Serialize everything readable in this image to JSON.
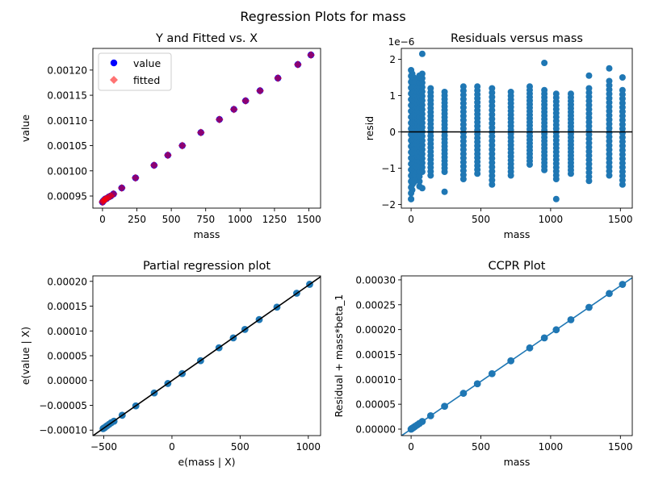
{
  "suptitle": "Regression Plots for mass",
  "colors": {
    "marker": "#1f77b4",
    "fitted": "#ff0000",
    "line": "#000000",
    "ccpr_line": "#1f77b4"
  },
  "chart_data": [
    {
      "type": "scatter",
      "title": "Y and Fitted vs. X",
      "xlabel": "mass",
      "ylabel": "value",
      "xlim": [
        -70,
        1585
      ],
      "ylim": [
        0.000926,
        0.001243
      ],
      "xticks": [
        0,
        250,
        500,
        750,
        1000,
        1250,
        1500
      ],
      "xticklabels": [
        "0",
        "250",
        "500",
        "750",
        "1000",
        "1250",
        "1500"
      ],
      "yticks": [
        0.00095,
        0.001,
        0.00105,
        0.0011,
        0.00115,
        0.0012
      ],
      "yticklabels": [
        "0.00095",
        "0.00100",
        "0.00105",
        "0.00110",
        "0.00115",
        "0.00120"
      ],
      "legend": {
        "position": "top-left",
        "entries": [
          "value",
          "fitted"
        ]
      },
      "series": [
        {
          "name": "value",
          "x": [
            0,
            5,
            12,
            20,
            30,
            45,
            60,
            80,
            140,
            240,
            375,
            475,
            580,
            715,
            850,
            955,
            1040,
            1145,
            1275,
            1420,
            1515
          ],
          "y": [
            0.000938,
            0.00094,
            0.000942,
            0.000944,
            0.000945,
            0.000948,
            0.00095,
            0.000954,
            0.000966,
            0.000986,
            0.001011,
            0.001031,
            0.00105,
            0.001076,
            0.001102,
            0.001122,
            0.001139,
            0.001159,
            0.001184,
            0.001211,
            0.00123
          ]
        },
        {
          "name": "fitted",
          "x": [
            0,
            5,
            12,
            20,
            30,
            45,
            60,
            80,
            140,
            240,
            375,
            475,
            580,
            715,
            850,
            955,
            1040,
            1145,
            1275,
            1420,
            1515
          ],
          "y": [
            0.000938,
            0.00094,
            0.000942,
            0.000944,
            0.000945,
            0.000948,
            0.00095,
            0.000954,
            0.000966,
            0.000986,
            0.001011,
            0.001031,
            0.00105,
            0.001076,
            0.001102,
            0.001122,
            0.001139,
            0.001159,
            0.001184,
            0.001211,
            0.00123
          ]
        }
      ]
    },
    {
      "type": "scatter",
      "title": "Residuals versus mass",
      "xlabel": "mass",
      "ylabel": "resid",
      "offset_label": "1e−6",
      "xlim": [
        -70,
        1585
      ],
      "ylim": [
        -2.1,
        2.3
      ],
      "xticks": [
        0,
        500,
        1000,
        1500
      ],
      "xticklabels": [
        "0",
        "500",
        "1000",
        "1500"
      ],
      "yticks": [
        -2,
        -1,
        0,
        1,
        2
      ],
      "yticklabels": [
        "−2",
        "−1",
        "0",
        "1",
        "2"
      ],
      "hline": 0,
      "columns": [
        {
          "x": 0,
          "min": -1.85,
          "max": 1.7
        },
        {
          "x": 8,
          "min": -1.6,
          "max": 1.6
        },
        {
          "x": 18,
          "min": -1.4,
          "max": 1.5
        },
        {
          "x": 30,
          "min": -1.3,
          "max": 1.4
        },
        {
          "x": 45,
          "min": -1.1,
          "max": 1.2
        },
        {
          "x": 60,
          "min": -1.5,
          "max": 1.5
        },
        {
          "x": 80,
          "min": -1.1,
          "max": 1.6
        },
        {
          "x": 140,
          "min": -1.2,
          "max": 1.2
        },
        {
          "x": 240,
          "min": -1.1,
          "max": 1.1
        },
        {
          "x": 375,
          "min": -1.3,
          "max": 1.25
        },
        {
          "x": 475,
          "min": -1.15,
          "max": 1.25
        },
        {
          "x": 580,
          "min": -1.45,
          "max": 1.2
        },
        {
          "x": 715,
          "min": -1.2,
          "max": 1.1
        },
        {
          "x": 850,
          "min": -0.9,
          "max": 1.25
        },
        {
          "x": 955,
          "min": -1.05,
          "max": 1.15
        },
        {
          "x": 1040,
          "min": -1.3,
          "max": 1.05
        },
        {
          "x": 1145,
          "min": -1.15,
          "max": 1.05
        },
        {
          "x": 1275,
          "min": -1.35,
          "max": 1.2
        },
        {
          "x": 1420,
          "min": -1.2,
          "max": 1.4
        },
        {
          "x": 1515,
          "min": -1.45,
          "max": 1.15
        }
      ],
      "outliers": [
        {
          "x": 80,
          "y": 2.15
        },
        {
          "x": 955,
          "y": 1.9
        },
        {
          "x": 1275,
          "y": 1.55
        },
        {
          "x": 1420,
          "y": 1.75
        },
        {
          "x": 1515,
          "y": 1.5
        },
        {
          "x": 0,
          "y": -1.85
        },
        {
          "x": 240,
          "y": -1.65
        },
        {
          "x": 1040,
          "y": -1.85
        },
        {
          "x": 80,
          "y": -1.55
        },
        {
          "x": 60,
          "y": 1.55
        }
      ]
    },
    {
      "type": "scatter",
      "title": "Partial regression plot",
      "xlabel": "e(mass | X)",
      "ylabel": "e(value | X)",
      "xlim": [
        -580,
        1090
      ],
      "ylim": [
        -0.000111,
        0.000211
      ],
      "xticks": [
        -500,
        0,
        500,
        1000
      ],
      "xticklabels": [
        "−500",
        "0",
        "500",
        "1000"
      ],
      "yticks": [
        -0.0001,
        -5e-05,
        0,
        5e-05,
        0.0001,
        0.00015,
        0.0002
      ],
      "yticklabels": [
        "−0.00010",
        "−0.00005",
        "0.00000",
        "0.00005",
        "0.00010",
        "0.00015",
        "0.00020"
      ],
      "fit_line": {
        "slope": 1.92e-07,
        "intercept": 0
      },
      "series": [
        {
          "x": [
            -505,
            -500,
            -493,
            -485,
            -475,
            -460,
            -445,
            -425,
            -365,
            -265,
            -130,
            -30,
            75,
            210,
            345,
            450,
            535,
            640,
            770,
            915,
            1010
          ],
          "y": [
            -9.7e-05,
            -9.6e-05,
            -9.5e-05,
            -9.3e-05,
            -9.1e-05,
            -8.8e-05,
            -8.5e-05,
            -8.2e-05,
            -7e-05,
            -5.1e-05,
            -2.5e-05,
            -6e-06,
            1.4e-05,
            4e-05,
            6.6e-05,
            8.6e-05,
            0.000103,
            0.000123,
            0.000148,
            0.000176,
            0.000194
          ]
        }
      ]
    },
    {
      "type": "scatter",
      "title": "CCPR Plot",
      "xlabel": "mass",
      "ylabel": "Residual + mass*beta_1",
      "xlim": [
        -70,
        1585
      ],
      "ylim": [
        -1.3e-05,
        0.000308
      ],
      "xticks": [
        0,
        500,
        1000,
        1500
      ],
      "xticklabels": [
        "0",
        "500",
        "1000",
        "1500"
      ],
      "yticks": [
        0,
        5e-05,
        0.0001,
        0.00015,
        0.0002,
        0.00025,
        0.0003
      ],
      "yticklabels": [
        "0.00000",
        "0.00005",
        "0.00010",
        "0.00015",
        "0.00020",
        "0.00025",
        "0.00030"
      ],
      "fit_line": {
        "slope": 1.92e-07,
        "intercept": 0
      },
      "series": [
        {
          "x": [
            0,
            5,
            12,
            20,
            30,
            45,
            60,
            80,
            140,
            240,
            375,
            475,
            580,
            715,
            850,
            955,
            1040,
            1145,
            1275,
            1420,
            1515
          ],
          "y": [
            0,
            1e-06,
            2.3e-06,
            3.8e-06,
            5.8e-06,
            8.6e-06,
            1.15e-05,
            1.54e-05,
            2.69e-05,
            4.6e-05,
            7.2e-05,
            9.12e-05,
            0.0001114,
            0.0001373,
            0.0001632,
            0.0001834,
            0.0001997,
            0.0002198,
            0.0002448,
            0.0002726,
            0.0002909
          ]
        }
      ]
    }
  ]
}
